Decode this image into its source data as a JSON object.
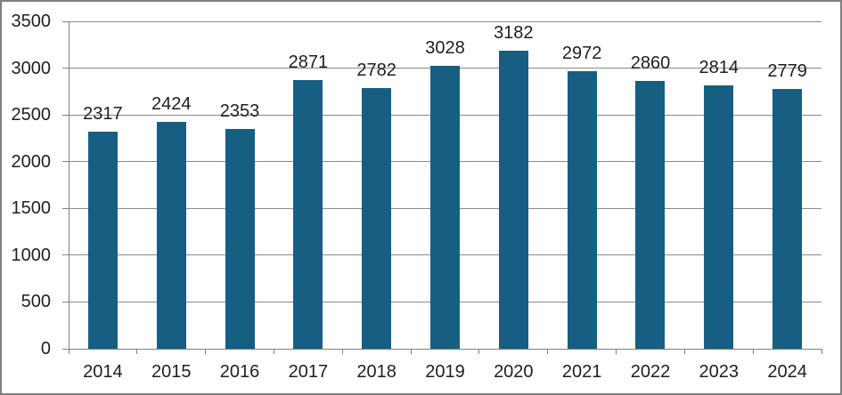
{
  "chart_data": {
    "type": "bar",
    "title": "",
    "categories": [
      "2014",
      "2015",
      "2016",
      "2017",
      "2018",
      "2019",
      "2020",
      "2021",
      "2022",
      "2023",
      "2024"
    ],
    "values": [
      2317,
      2424,
      2353,
      2871,
      2782,
      3028,
      3182,
      2972,
      2860,
      2814,
      2779
    ],
    "xlabel": "",
    "ylabel": "",
    "ylim": [
      0,
      3500
    ],
    "yticks": [
      0,
      500,
      1000,
      1500,
      2000,
      2500,
      3000,
      3500
    ],
    "grid": "horizontal",
    "legend_position": "none",
    "value_labels": "above-bars",
    "colors": {
      "bar": "#165F83",
      "gridline": "#8A8A8A",
      "axis": "#808080",
      "text": "#1F1F1F",
      "frame_border": "#7F7F7F",
      "background": "#FFFFFF"
    }
  }
}
